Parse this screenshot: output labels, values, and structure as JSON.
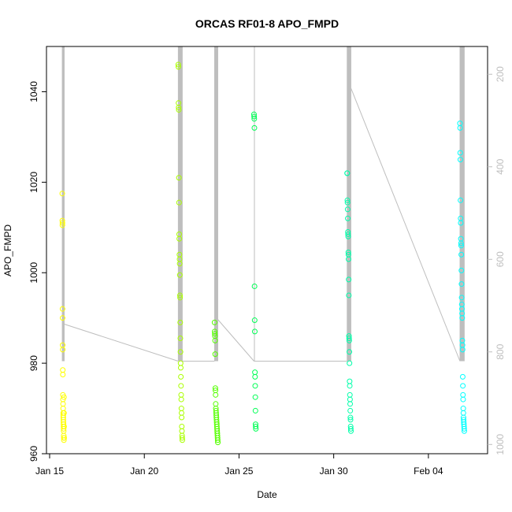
{
  "chart_data": {
    "type": "scatter",
    "title": "ORCAS RF01-8 APO_FMPD",
    "xlabel": "Date",
    "ylabel": "APO_FMPD",
    "x_ticks": [
      "Jan 15",
      "Jan 20",
      "Jan 25",
      "Jan 30",
      "Feb 04"
    ],
    "x_tick_dates": [
      "2016-01-15",
      "2016-01-20",
      "2016-01-25",
      "2016-01-30",
      "2016-02-04"
    ],
    "xlim": [
      "2016-01-14T20:00",
      "2016-02-07T03:00"
    ],
    "ylim": [
      960,
      1050
    ],
    "y_ticks": [
      960,
      980,
      1000,
      1020,
      1040
    ],
    "y2_ticks": [
      200,
      400,
      600,
      800,
      1000
    ],
    "y2lim": [
      1020,
      140
    ],
    "y2_inverted": true,
    "grid": false,
    "point_style": "open-circle",
    "colors": {
      "rf01": "#ffff00",
      "rf02": "#aaff00",
      "rf03": "#55ff00",
      "rf04": "#00ff00",
      "rf05": "#00ff55",
      "rf06": "#00ffaa",
      "rf07": "#00ffff",
      "altitude_line": "#bebebe"
    },
    "series": [
      {
        "color": "#ffff00",
        "x": [
          "2016-01-15T16:00",
          "2016-01-15T16:05",
          "2016-01-15T16:10",
          "2016-01-15T16:15",
          "2016-01-15T16:20",
          "2016-01-15T16:25",
          "2016-01-15T16:30",
          "2016-01-15T16:35",
          "2016-01-15T16:40",
          "2016-01-15T16:45",
          "2016-01-15T16:50",
          "2016-01-15T16:55",
          "2016-01-15T17:00",
          "2016-01-15T17:05",
          "2016-01-15T17:10",
          "2016-01-15T17:15",
          "2016-01-15T17:20",
          "2016-01-15T17:25",
          "2016-01-15T17:30",
          "2016-01-15T17:35",
          "2016-01-15T17:40",
          "2016-01-15T17:45",
          "2016-01-15T17:50",
          "2016-01-15T17:55",
          "2016-01-15T18:00",
          "2016-01-15T18:05",
          "2016-01-15T18:10",
          "2016-01-15T18:15",
          "2016-01-15T18:20",
          "2016-01-15T18:25"
        ],
        "y": [
          1017.5,
          1011.5,
          1010.5,
          1011,
          992,
          990,
          984,
          983,
          978.5,
          977.5,
          973,
          972,
          971,
          970,
          969,
          968.5,
          968,
          967.5,
          967,
          966.5,
          966,
          965.5,
          965,
          964,
          963.5,
          963,
          972.5,
          969,
          966,
          963.5
        ]
      },
      {
        "color": "#aaff00",
        "x": [
          "2016-01-21T19:00",
          "2016-01-21T19:10",
          "2016-01-21T19:20",
          "2016-01-21T19:30",
          "2016-01-21T19:40",
          "2016-01-21T19:50",
          "2016-01-21T20:00",
          "2016-01-21T20:10",
          "2016-01-21T20:20",
          "2016-01-21T20:30",
          "2016-01-21T20:40",
          "2016-01-21T20:50",
          "2016-01-21T21:00",
          "2016-01-21T21:10",
          "2016-01-21T21:20",
          "2016-01-21T21:30",
          "2016-01-21T21:40",
          "2016-01-21T21:50",
          "2016-01-21T22:00",
          "2016-01-21T22:10",
          "2016-01-21T22:20",
          "2016-01-21T22:30",
          "2016-01-21T22:40",
          "2016-01-21T22:50",
          "2016-01-21T23:00",
          "2016-01-21T23:10",
          "2016-01-21T23:20",
          "2016-01-21T23:30",
          "2016-01-21T23:40",
          "2016-01-21T23:50",
          "2016-01-22T00:00",
          "2016-01-22T00:10"
        ],
        "y": [
          1046,
          1045.5,
          1037.5,
          1036.5,
          1036,
          1021,
          1015.5,
          1008.5,
          1007.5,
          1004,
          1003,
          1002,
          999.5,
          995,
          994.5,
          989,
          985.5,
          982.5,
          980,
          979,
          977,
          975,
          973,
          972,
          970,
          969,
          968,
          966,
          965,
          964,
          963.5,
          963
        ]
      },
      {
        "color": "#55ff00",
        "x": [
          "2016-01-23T17:00",
          "2016-01-23T17:10",
          "2016-01-23T17:20",
          "2016-01-23T17:30",
          "2016-01-23T17:40",
          "2016-01-23T17:50",
          "2016-01-23T18:00",
          "2016-01-23T18:10",
          "2016-01-23T18:20",
          "2016-01-23T18:30",
          "2016-01-23T18:40",
          "2016-01-23T18:50",
          "2016-01-23T19:00",
          "2016-01-23T19:10",
          "2016-01-23T19:20",
          "2016-01-23T19:30",
          "2016-01-23T19:40",
          "2016-01-23T19:50",
          "2016-01-23T20:00",
          "2016-01-23T20:10",
          "2016-01-23T20:20",
          "2016-01-23T20:30",
          "2016-01-23T20:40",
          "2016-01-23T20:50",
          "2016-01-23T21:00",
          "2016-01-23T21:10"
        ],
        "y": [
          989,
          987,
          986.5,
          986,
          985,
          982,
          974.5,
          974,
          973,
          971,
          970,
          969.5,
          969,
          968.5,
          968,
          967.5,
          967,
          966.5,
          966,
          965.5,
          965,
          964.5,
          964,
          963.5,
          963,
          962.5
        ]
      },
      {
        "color": "#00ff55",
        "x": [
          "2016-01-25T19:00",
          "2016-01-25T19:10",
          "2016-01-25T19:20",
          "2016-01-25T19:30",
          "2016-01-25T19:40",
          "2016-01-25T19:50",
          "2016-01-25T20:00",
          "2016-01-25T20:10",
          "2016-01-25T20:20",
          "2016-01-25T20:30",
          "2016-01-25T20:40",
          "2016-01-25T20:50",
          "2016-01-25T21:00",
          "2016-01-25T21:10",
          "2016-01-25T21:20"
        ],
        "y": [
          1035,
          1034.5,
          1034,
          1032,
          997,
          989.5,
          987,
          978,
          977,
          975,
          972.5,
          969.5,
          966.5,
          966,
          965.5
        ]
      },
      {
        "color": "#00ffaa",
        "x": [
          "2016-01-30T17:00",
          "2016-01-30T17:10",
          "2016-01-30T17:20",
          "2016-01-30T17:30",
          "2016-01-30T17:40",
          "2016-01-30T17:50",
          "2016-01-30T18:00",
          "2016-01-30T18:10",
          "2016-01-30T18:20",
          "2016-01-30T18:30",
          "2016-01-30T18:40",
          "2016-01-30T18:50",
          "2016-01-30T19:00",
          "2016-01-30T19:10",
          "2016-01-30T19:20",
          "2016-01-30T19:30",
          "2016-01-30T19:40",
          "2016-01-30T19:50",
          "2016-01-30T20:00",
          "2016-01-30T20:10",
          "2016-01-30T20:20",
          "2016-01-30T20:30",
          "2016-01-30T20:40",
          "2016-01-30T20:50",
          "2016-01-30T21:00",
          "2016-01-30T21:10",
          "2016-01-30T21:20",
          "2016-01-30T21:30",
          "2016-01-30T21:40",
          "2016-01-30T21:50"
        ],
        "y": [
          1022,
          1022,
          1016,
          1015.5,
          1014,
          1012,
          1009,
          1008.5,
          1008,
          1004.5,
          1004,
          1003,
          998.5,
          995,
          986,
          985.5,
          985,
          982.5,
          980,
          976,
          975,
          973,
          972,
          971,
          969.5,
          968,
          967.5,
          966,
          965.5,
          965
        ]
      },
      {
        "color": "#00ffff",
        "x": [
          "2016-02-05T16:00",
          "2016-02-05T16:10",
          "2016-02-05T16:20",
          "2016-02-05T16:30",
          "2016-02-05T16:40",
          "2016-02-05T16:50",
          "2016-02-05T17:00",
          "2016-02-05T17:10",
          "2016-02-05T17:20",
          "2016-02-05T17:30",
          "2016-02-05T17:40",
          "2016-02-05T17:50",
          "2016-02-05T18:00",
          "2016-02-05T18:10",
          "2016-02-05T18:20",
          "2016-02-05T18:30",
          "2016-02-05T18:40",
          "2016-02-05T18:50",
          "2016-02-05T19:00",
          "2016-02-05T19:10",
          "2016-02-05T19:20",
          "2016-02-05T19:30",
          "2016-02-05T19:40",
          "2016-02-05T19:50",
          "2016-02-05T20:00",
          "2016-02-05T20:10",
          "2016-02-05T20:20",
          "2016-02-05T20:30",
          "2016-02-05T20:40",
          "2016-02-05T20:50",
          "2016-02-05T21:00",
          "2016-02-05T21:10",
          "2016-02-05T21:20",
          "2016-02-05T21:30"
        ],
        "y": [
          1033,
          1032,
          1026.5,
          1025,
          1016,
          1012,
          1011,
          1007.5,
          1006.5,
          1006,
          1004,
          1000.5,
          997.5,
          994.5,
          993,
          992,
          991,
          990,
          985,
          984,
          983,
          977,
          975,
          973,
          972,
          970,
          969,
          968,
          967.5,
          967,
          966.5,
          966,
          965.5,
          965
        ]
      }
    ],
    "altitude_profile": {
      "segments": [
        {
          "x": [
            "2016-01-15T16:00",
            "2016-01-15T18:30"
          ],
          "y_top": 140,
          "y_bottom": 820,
          "dense": true
        },
        {
          "x": [
            "2016-01-21T19:00",
            "2016-01-22T00:10"
          ],
          "y_top": 140,
          "y_bottom": 820,
          "dense": true
        },
        {
          "x": [
            "2016-01-23T17:00",
            "2016-01-23T21:10"
          ],
          "y_top": 140,
          "y_bottom": 820,
          "dense": true
        },
        {
          "x": [
            "2016-01-30T17:00",
            "2016-01-30T21:50"
          ],
          "y_top": 140,
          "y_bottom": 820,
          "dense": true
        },
        {
          "x": [
            "2016-02-05T16:00",
            "2016-02-05T21:30"
          ],
          "y_top": 140,
          "y_bottom": 820,
          "dense": true
        }
      ],
      "connectors": [
        {
          "x": [
            "2016-01-15T18:30",
            "2016-01-21T19:00"
          ],
          "y": [
            740,
            820
          ]
        },
        {
          "x": [
            "2016-01-22T00:10",
            "2016-01-23T17:00"
          ],
          "y": [
            820,
            820
          ]
        },
        {
          "x": [
            "2016-01-23T21:10",
            "2016-01-25T19:00"
          ],
          "y": [
            730,
            820
          ]
        },
        {
          "x": [
            "2016-01-25T19:00",
            "2016-01-30T17:00"
          ],
          "y": [
            820,
            820
          ]
        },
        {
          "x": [
            "2016-01-30T21:50",
            "2016-02-05T16:00"
          ],
          "y": [
            230,
            820
          ]
        }
      ],
      "single_traces": [
        {
          "x": "2016-01-25T19:30",
          "y_top": 140,
          "y_bottom": 820
        }
      ]
    }
  }
}
